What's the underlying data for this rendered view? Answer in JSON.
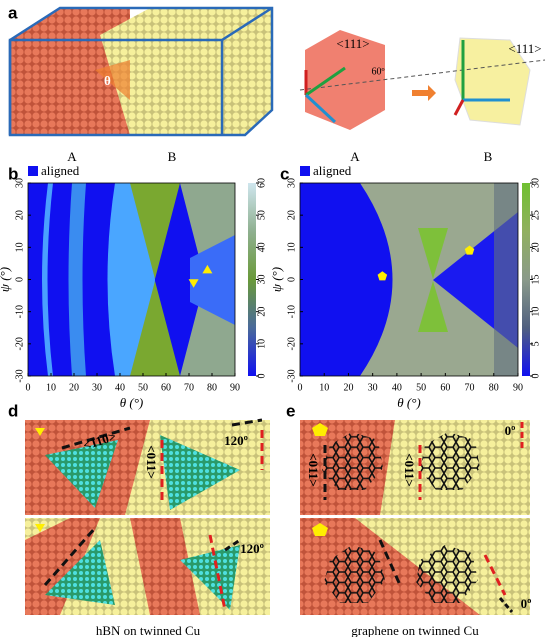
{
  "panel_a": {
    "label": "a",
    "theta": "θ",
    "captions": [
      "A",
      "B",
      "A",
      "B"
    ],
    "axis_labels": [
      "<111>",
      "<111>"
    ],
    "angle": "60º"
  },
  "chart_data": [
    {
      "type": "heatmap",
      "label": "b",
      "legend": "aligned",
      "legend_color": "#1010f0",
      "xlabel": "θ (°)",
      "ylabel": "ψ (°)",
      "xlim": [
        0,
        90
      ],
      "xticks": [
        0,
        10,
        20,
        30,
        40,
        50,
        60,
        70,
        80,
        90
      ],
      "ylim": [
        -30,
        30
      ],
      "yticks": [
        -30,
        -20,
        -10,
        0,
        10,
        20,
        30
      ],
      "colorbar": {
        "lim": [
          0,
          60
        ],
        "ticks": [
          0,
          10,
          20,
          30,
          40,
          50,
          60
        ],
        "colors": [
          "#1010f0",
          "#4a6a9a",
          "#6a9a3a",
          "#8fb090",
          "#cfe6ee"
        ]
      },
      "markers": [
        {
          "shape": "triangle-up",
          "color": "#ffee00",
          "x": 78,
          "y": 3
        },
        {
          "shape": "triangle-down",
          "color": "#ffee00",
          "x": 72,
          "y": -1
        }
      ]
    },
    {
      "type": "heatmap",
      "label": "c",
      "legend": "aligned",
      "legend_color": "#1010f0",
      "xlabel": "θ (°)",
      "ylabel": "ψ (°)",
      "xlim": [
        0,
        90
      ],
      "xticks": [
        0,
        10,
        20,
        30,
        40,
        50,
        60,
        70,
        80,
        90
      ],
      "ylim": [
        -30,
        30
      ],
      "yticks": [
        -30,
        -20,
        -10,
        0,
        10,
        20,
        30
      ],
      "colorbar": {
        "lim": [
          0,
          30
        ],
        "ticks": [
          0,
          5,
          10,
          15,
          20,
          25,
          30
        ],
        "colors": [
          "#1010f0",
          "#506080",
          "#8a9a8a",
          "#90b060",
          "#70c030"
        ]
      },
      "markers": [
        {
          "shape": "pentagon",
          "color": "#ffee00",
          "x": 34,
          "y": 1
        },
        {
          "shape": "pentagon",
          "color": "#ffee00",
          "x": 70,
          "y": 9
        }
      ]
    }
  ],
  "panel_d": {
    "label": "d",
    "top": [
      "<110>",
      "<011>",
      "120º"
    ],
    "bottom": [
      "120º"
    ],
    "caption": "hBN on twinned Cu"
  },
  "panel_e": {
    "label": "e",
    "top": [
      "<011>",
      "<011>",
      "0º"
    ],
    "bottom": [
      "0º"
    ],
    "caption": "graphene on twinned Cu"
  }
}
